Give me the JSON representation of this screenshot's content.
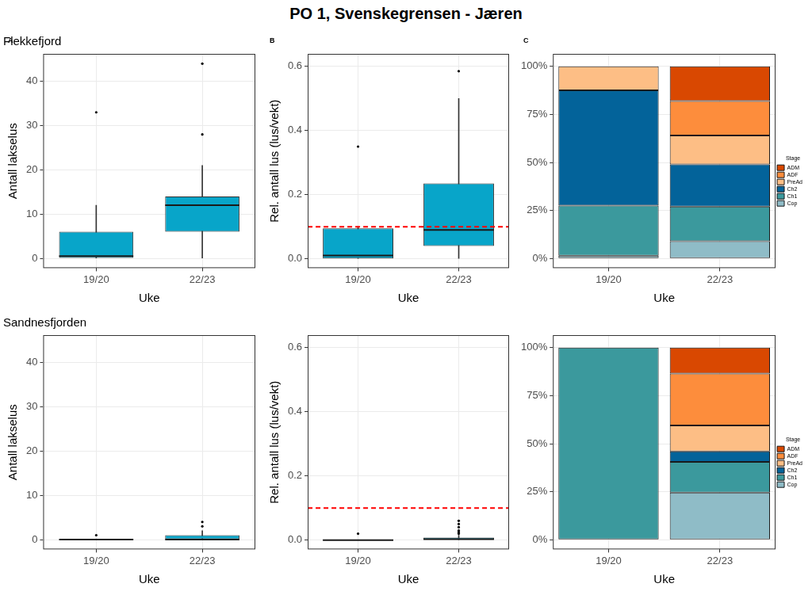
{
  "title": "PO 1, Svenskegrensen - Jæren",
  "chart_data": [
    {
      "type": "boxplot",
      "annotations": [
        "A"
      ],
      "title": "Flekkefjord",
      "x_label": "Uke",
      "y_label": "Antall lakselus",
      "categories": [
        "19/20",
        "22/23"
      ],
      "color": "#08a5c9",
      "values": [
        {
          "min": 0,
          "q1": 0,
          "median": 0.5,
          "q3": 6,
          "max": 12,
          "outliers": [
            33
          ]
        },
        {
          "min": 0,
          "q1": 6,
          "median": 12,
          "q3": 14,
          "max": 21,
          "outliers": [
            28,
            44
          ]
        }
      ],
      "ylim": [
        -2.2,
        46.2
      ],
      "yticks": [
        0,
        10,
        20,
        30,
        40
      ],
      "grid": true
    },
    {
      "type": "boxplot",
      "annotations": [
        "B"
      ],
      "x_label": "Uke",
      "y_label": "Rel. antall lus (lus/vekt)",
      "categories": [
        "19/20",
        "22/23"
      ],
      "color": "#08a5c9",
      "values": [
        {
          "min": 0,
          "q1": 0,
          "median": 0.01,
          "q3": 0.095,
          "max": 0.1,
          "outliers": [
            0.35
          ]
        },
        {
          "min": 0,
          "q1": 0.04,
          "median": 0.09,
          "q3": 0.235,
          "max": 0.5,
          "outliers": [
            0.585
          ]
        }
      ],
      "threshold": {
        "value": 0.1,
        "color": "#ff0000",
        "line_style": "dashed"
      },
      "ylim": [
        -0.029,
        0.639
      ],
      "yticks": [
        {
          "value": 0,
          "label": "0.0"
        },
        0.2,
        0.4,
        0.6
      ],
      "grid": true
    },
    {
      "type": "bar",
      "stacked": true,
      "annotations": [
        "C"
      ],
      "x_label": "Uke",
      "categories": [
        "19/20",
        "22/23"
      ],
      "legend": "right",
      "legend_title": "Stage",
      "series": [
        {
          "name": "Cop",
          "color": "#8fbcc7",
          "values": [
            1.5,
            9
          ]
        },
        {
          "name": "Ch1",
          "color": "#3b999d",
          "values": [
            26,
            18
          ]
        },
        {
          "name": "Ch2",
          "color": "#03639a",
          "values": [
            60,
            22
          ]
        },
        {
          "name": "PreAd",
          "color": "#fdbe85",
          "values": [
            12.5,
            15
          ]
        },
        {
          "name": "ADF",
          "color": "#fd8d3c",
          "values": [
            0,
            18
          ]
        },
        {
          "name": "ADM",
          "color": "#d94801",
          "values": [
            0,
            18
          ]
        }
      ],
      "ylim": [
        -5,
        106.5
      ],
      "yticks": [
        {
          "value": 0,
          "label": "0%"
        },
        {
          "value": 25,
          "label": "25%"
        },
        {
          "value": 50,
          "label": "50%"
        },
        {
          "value": 75,
          "label": "75%"
        },
        {
          "value": 100,
          "label": "100%"
        }
      ],
      "grid": true
    },
    {
      "type": "boxplot",
      "title": "Sandnesfjorden",
      "x_label": "Uke",
      "y_label": "Antall lakselus",
      "categories": [
        "19/20",
        "22/23"
      ],
      "color": "#08a5c9",
      "values": [
        {
          "min": 0,
          "q1": 0,
          "median": 0,
          "q3": 0,
          "max": 0,
          "outliers": [
            1
          ]
        },
        {
          "min": 0,
          "q1": 0,
          "median": 0,
          "q3": 1,
          "max": 2,
          "outliers": [
            3,
            4
          ]
        }
      ],
      "ylim": [
        -2.2,
        46.2
      ],
      "yticks": [
        0,
        10,
        20,
        30,
        40
      ],
      "grid": true
    },
    {
      "type": "boxplot",
      "x_label": "Uke",
      "y_label": "Rel. antall lus (lus/vekt)",
      "categories": [
        "19/20",
        "22/23"
      ],
      "color": "#08a5c9",
      "values": [
        {
          "min": 0,
          "q1": 0,
          "median": 0,
          "q3": 0,
          "max": 0,
          "outliers": [
            0.02
          ]
        },
        {
          "min": 0,
          "q1": 0,
          "median": 0.003,
          "q3": 0.008,
          "max": 0.015,
          "outliers": [
            0.02,
            0.025,
            0.03,
            0.04,
            0.05,
            0.06
          ]
        }
      ],
      "threshold": {
        "value": 0.1,
        "color": "#ff0000",
        "line_style": "dashed"
      },
      "ylim": [
        -0.029,
        0.639
      ],
      "yticks": [
        {
          "value": 0,
          "label": "0.0"
        },
        0.2,
        0.4,
        0.6
      ],
      "grid": true
    },
    {
      "type": "bar",
      "stacked": true,
      "x_label": "Uke",
      "categories": [
        "19/20",
        "22/23"
      ],
      "legend": "right",
      "legend_title": "Stage",
      "series": [
        {
          "name": "Cop",
          "color": "#8fbcc7",
          "values": [
            0,
            24.5
          ]
        },
        {
          "name": "Ch1",
          "color": "#3b999d",
          "values": [
            100,
            16
          ]
        },
        {
          "name": "Ch2",
          "color": "#03639a",
          "values": [
            0,
            5.5
          ]
        },
        {
          "name": "PreAd",
          "color": "#fdbe85",
          "values": [
            0,
            13.5
          ]
        },
        {
          "name": "ADF",
          "color": "#fd8d3c",
          "values": [
            0,
            27
          ]
        },
        {
          "name": "ADM",
          "color": "#d94801",
          "values": [
            0,
            13.5
          ]
        }
      ],
      "ylim": [
        -5,
        106.5
      ],
      "yticks": [
        {
          "value": 0,
          "label": "0%"
        },
        {
          "value": 25,
          "label": "25%"
        },
        {
          "value": 50,
          "label": "50%"
        },
        {
          "value": 75,
          "label": "75%"
        },
        {
          "value": 100,
          "label": "100%"
        }
      ],
      "grid": true
    }
  ]
}
